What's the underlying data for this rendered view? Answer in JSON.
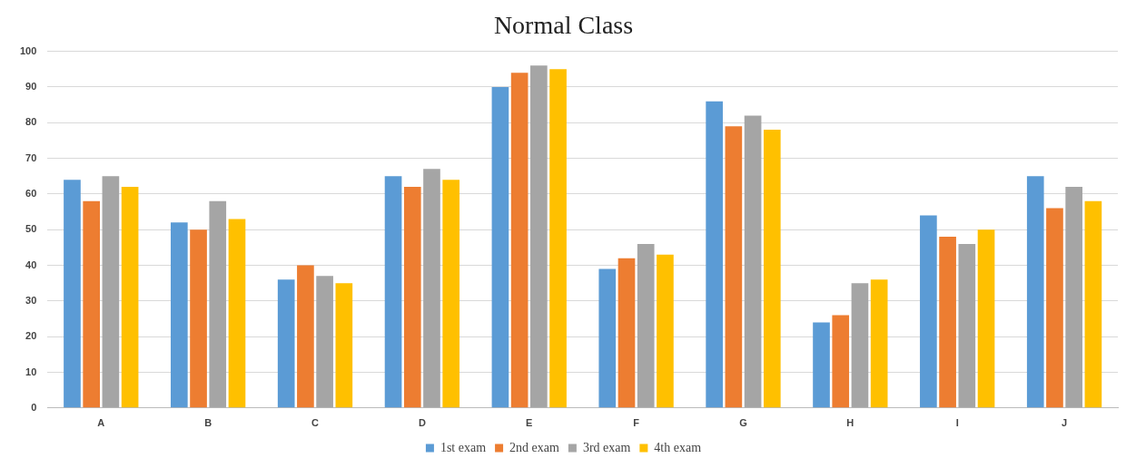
{
  "chart_data": {
    "type": "bar",
    "title": "Normal Class",
    "categories": [
      "A",
      "B",
      "C",
      "D",
      "E",
      "F",
      "G",
      "H",
      "I",
      "J"
    ],
    "series": [
      {
        "name": "1st exam",
        "color": "#5b9bd5",
        "values": [
          64,
          52,
          36,
          65,
          90,
          39,
          86,
          24,
          54,
          65
        ]
      },
      {
        "name": "2nd exam",
        "color": "#ed7d31",
        "values": [
          58,
          50,
          40,
          62,
          94,
          42,
          79,
          26,
          48,
          56
        ]
      },
      {
        "name": "3rd exam",
        "color": "#a5a5a5",
        "values": [
          65,
          58,
          37,
          67,
          96,
          46,
          82,
          35,
          46,
          62
        ]
      },
      {
        "name": "4th exam",
        "color": "#ffc000",
        "values": [
          62,
          53,
          35,
          64,
          95,
          43,
          78,
          36,
          50,
          58
        ]
      }
    ],
    "ylim": [
      0,
      100
    ],
    "yticks": [
      0,
      10,
      20,
      30,
      40,
      50,
      60,
      70,
      80,
      90,
      100
    ],
    "grid": "y",
    "legend": "bottom"
  }
}
